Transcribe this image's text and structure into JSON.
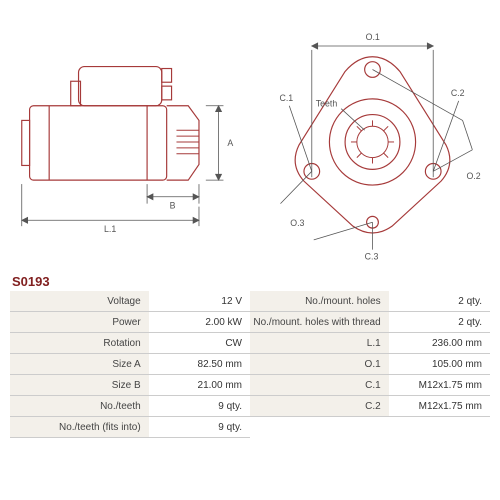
{
  "part_number": "S0193",
  "drawing_left": {
    "type": "engineering-drawing",
    "stroke_color": "#a63a3a",
    "dim_color": "#555555",
    "labels": {
      "A": "A",
      "B": "B",
      "L1": "L.1"
    }
  },
  "drawing_right": {
    "type": "engineering-drawing",
    "stroke_color": "#a63a3a",
    "dim_color": "#555555",
    "labels": {
      "O1": "O.1",
      "O2": "O.2",
      "O3": "O.3",
      "C1": "C.1",
      "C2": "C.2",
      "C3": "C.3",
      "Teeth": "Teeth"
    }
  },
  "specs": {
    "left": [
      {
        "label": "Voltage",
        "value": "12 V"
      },
      {
        "label": "Power",
        "value": "2.00 kW"
      },
      {
        "label": "Rotation",
        "value": "CW"
      },
      {
        "label": "Size A",
        "value": "82.50 mm"
      },
      {
        "label": "Size B",
        "value": "21.00 mm"
      },
      {
        "label": "No./teeth",
        "value": "9 qty."
      },
      {
        "label": "No./teeth (fits into)",
        "value": "9 qty."
      }
    ],
    "right": [
      {
        "label": "No./mount. holes",
        "value": "2 qty."
      },
      {
        "label": "No./mount. holes with thread",
        "value": "2 qty."
      },
      {
        "label": "L.1",
        "value": "236.00 mm"
      },
      {
        "label": "O.1",
        "value": "105.00 mm"
      },
      {
        "label": "C.1",
        "value": "M12x1.75 mm"
      },
      {
        "label": "C.2",
        "value": "M12x1.75 mm"
      }
    ]
  },
  "table_style": {
    "label_bg": "#f3f0ea",
    "border_color": "#cccccc",
    "font_size": 10
  }
}
